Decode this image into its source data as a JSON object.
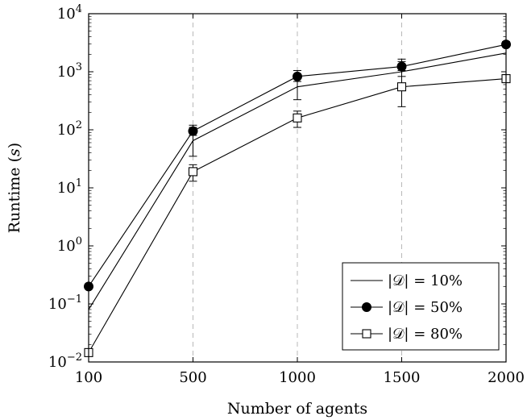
{
  "chart_data": {
    "type": "line",
    "title": "",
    "xlabel": "Number of agents",
    "ylabel": "Runtime",
    "ylabel_unit": "s",
    "yscale": "log",
    "ylim": [
      0.01,
      10000
    ],
    "x_categories": [
      "100",
      "500",
      "1000",
      "1500",
      "2000"
    ],
    "y_tick_mantissa": "10",
    "y_tick_exponents": [
      "−2",
      "−1",
      "0",
      "1",
      "2",
      "3",
      "4"
    ],
    "grid": "vertical dashed at x ticks",
    "legend_position": "bottom-right",
    "series": [
      {
        "name": "|𝒟| = 10%",
        "marker": "none",
        "values": [
          0.08,
          65,
          550,
          1000,
          2100
        ],
        "err_low": [
          0.08,
          35,
          330,
          600,
          2100
        ],
        "err_high": [
          0.08,
          110,
          900,
          1500,
          2100
        ]
      },
      {
        "name": "|𝒟| = 50%",
        "marker": "filled-circle",
        "values": [
          0.2,
          95,
          830,
          1230,
          2950
        ],
        "err_low": [
          0.2,
          80,
          680,
          1050,
          2700
        ],
        "err_high": [
          0.2,
          120,
          1050,
          1650,
          3300
        ]
      },
      {
        "name": "|𝒟| = 80%",
        "marker": "open-square",
        "values": [
          0.0145,
          19,
          160,
          550,
          760
        ],
        "err_low": [
          0.0145,
          13,
          110,
          250,
          760
        ],
        "err_high": [
          0.0145,
          25,
          210,
          830,
          760
        ]
      }
    ]
  }
}
